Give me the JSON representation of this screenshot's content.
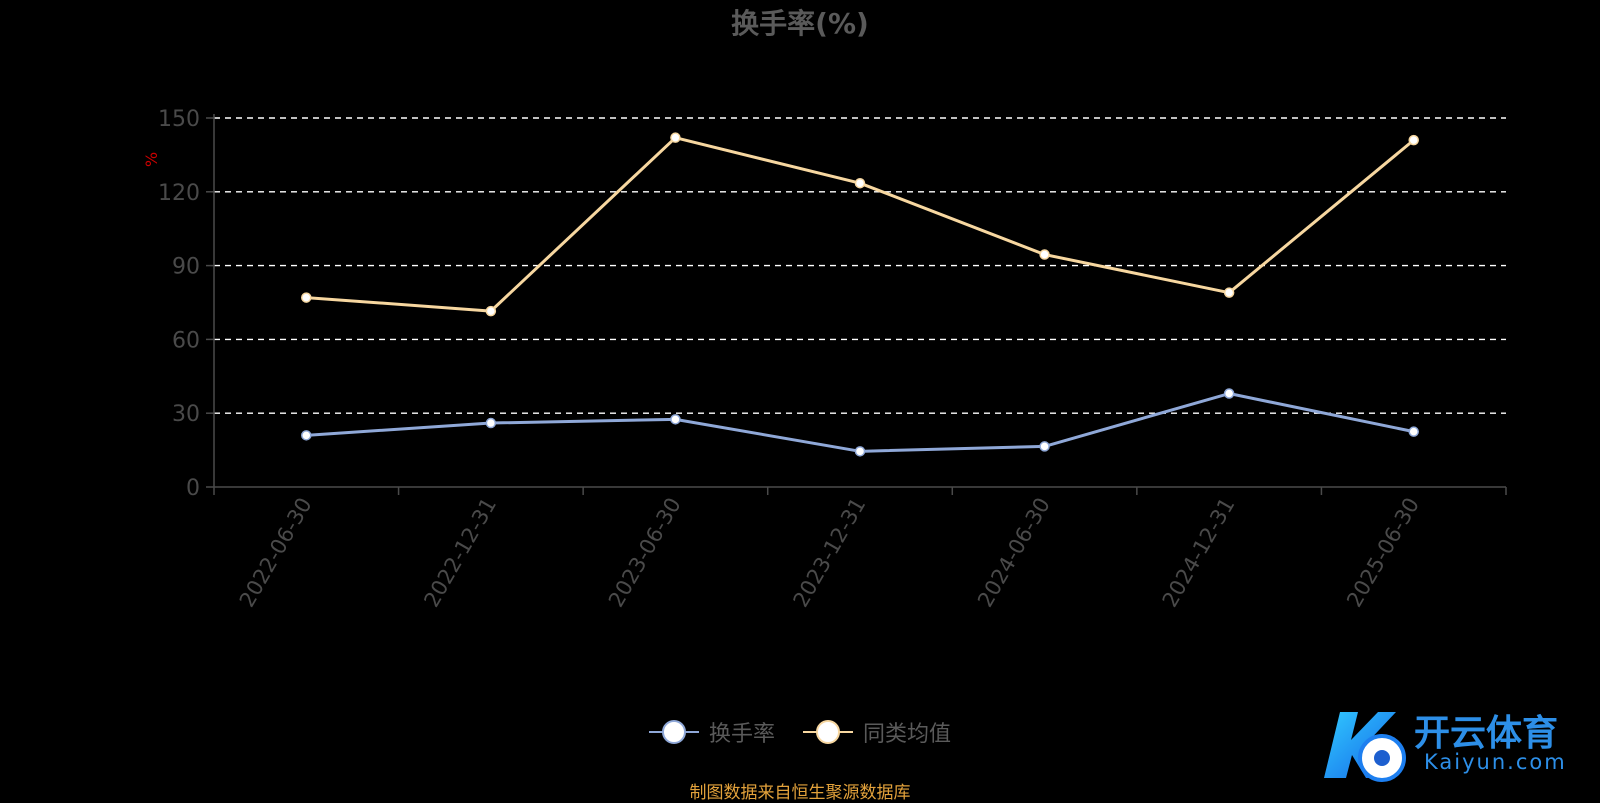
{
  "title": "换手率(%)",
  "source_note": "制图数据来自恒生聚源数据库",
  "watermark": {
    "cn": "开云体育",
    "en": "Kaiyun.com"
  },
  "colors": {
    "series1": "#8fa8d8",
    "series2": "#f7d7a0",
    "grid": "#ffffff",
    "axis": "#4a4a4a",
    "tick": "#4a4a4a",
    "unit": "#cc0000",
    "source": "#e3a23b"
  },
  "chart_data": {
    "type": "line",
    "title": "换手率(%)",
    "ylabel": "%",
    "ylim": [
      0,
      150
    ],
    "yticks": [
      "0",
      "30",
      "60",
      "90",
      "120",
      "150"
    ],
    "categories": [
      "2022-06-30",
      "2022-12-31",
      "2023-06-30",
      "2023-12-31",
      "2024-06-30",
      "2024-12-31",
      "2025-06-30"
    ],
    "series": [
      {
        "name": "换手率",
        "values": [
          21,
          26,
          27.5,
          14.5,
          16.5,
          38,
          22.5
        ]
      },
      {
        "name": "同类均值",
        "values": [
          77,
          71.5,
          142,
          123.5,
          94.5,
          79,
          141
        ]
      }
    ],
    "grid": true,
    "legend": "bottom-center"
  }
}
